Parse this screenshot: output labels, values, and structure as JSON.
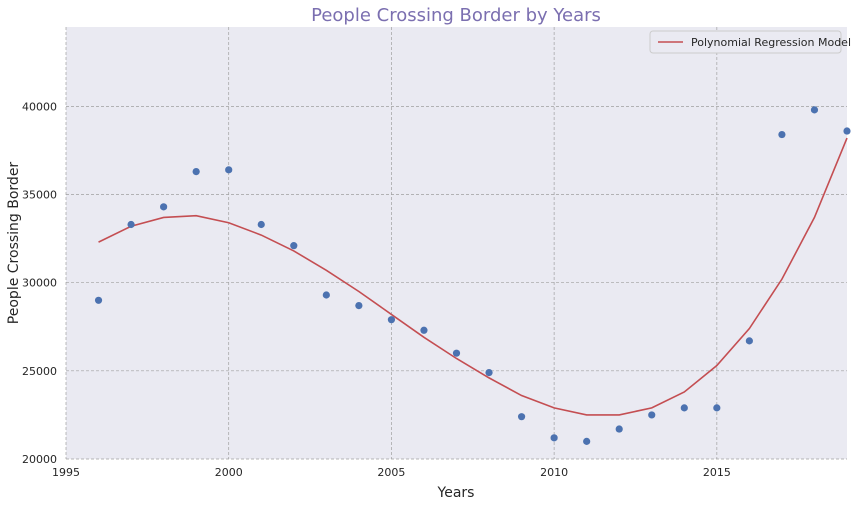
{
  "chart_data": {
    "type": "scatter",
    "title": "People Crossing Border by Years",
    "xlabel": "Years",
    "ylabel": "People Crossing Border",
    "xlim": [
      1995,
      2019
    ],
    "ylim": [
      20000,
      44500
    ],
    "xticks": [
      1995,
      2000,
      2005,
      2010,
      2015
    ],
    "yticks": [
      20000,
      25000,
      30000,
      35000,
      40000
    ],
    "grid": true,
    "legend": {
      "placement": "top-right",
      "entries": [
        "Polynomial Regression Model"
      ]
    },
    "colors": {
      "title": "#7b6fb0",
      "points": "#4c72b0",
      "line": "#c44e52",
      "plot_bg": "#eaeaf2",
      "grid": "#a0a0a0"
    },
    "series": [
      {
        "type": "scatter",
        "x": [
          1996,
          1997,
          1998,
          1999,
          2000,
          2001,
          2002,
          2003,
          2004,
          2005,
          2006,
          2007,
          2008,
          2009,
          2010,
          2011,
          2012,
          2013,
          2014,
          2015,
          2016,
          2017,
          2018,
          2019
        ],
        "y": [
          29000,
          33300,
          34300,
          36300,
          36400,
          33300,
          32100,
          29300,
          28700,
          27900,
          27300,
          26000,
          24900,
          22400,
          21200,
          21000,
          21700,
          22500,
          22900,
          22900,
          26700,
          38400,
          39800,
          38600
        ]
      },
      {
        "name": "Polynomial Regression Model",
        "type": "line",
        "x": [
          1996,
          1997,
          1998,
          1999,
          2000,
          2001,
          2002,
          2003,
          2004,
          2005,
          2006,
          2007,
          2008,
          2009,
          2010,
          2011,
          2012,
          2013,
          2014,
          2015,
          2016,
          2017,
          2018,
          2019
        ],
        "y": [
          32300,
          33200,
          33700,
          33800,
          33400,
          32700,
          31800,
          30700,
          29500,
          28200,
          26900,
          25700,
          24600,
          23600,
          22900,
          22500,
          22500,
          22900,
          23800,
          25300,
          27400,
          30200,
          33700,
          38200
        ]
      }
    ]
  }
}
